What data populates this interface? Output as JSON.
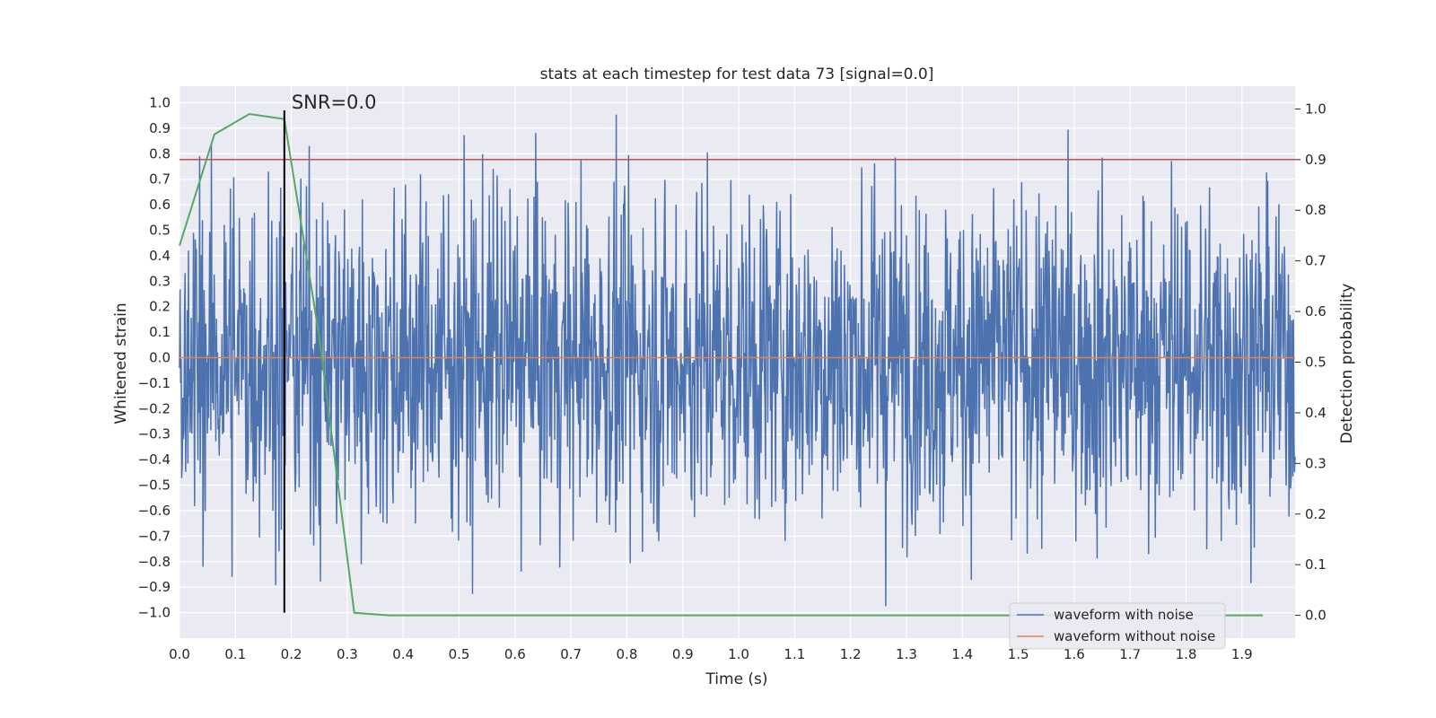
{
  "chart_data": {
    "type": "line",
    "title": "stats at each timestep for test data 73 [signal=0.0]",
    "xlabel": "Time (s)",
    "ylabel": "Whitened strain",
    "ylabel_right": "Detection probability",
    "xlim": [
      0.0,
      1.995
    ],
    "ylim": [
      -1.1,
      1.065
    ],
    "ylim_right": [
      -0.045,
      1.045
    ],
    "x_ticks": [
      "0.0",
      "0.1",
      "0.2",
      "0.3",
      "0.4",
      "0.5",
      "0.6",
      "0.7",
      "0.8",
      "0.9",
      "1.0",
      "1.1",
      "1.2",
      "1.3",
      "1.4",
      "1.5",
      "1.6",
      "1.7",
      "1.8",
      "1.9"
    ],
    "y_ticks": [
      "1.0",
      "0.9",
      "0.8",
      "0.7",
      "0.6",
      "0.5",
      "0.4",
      "0.3",
      "0.2",
      "0.1",
      "0.0",
      "−0.1",
      "−0.2",
      "−0.3",
      "−0.4",
      "−0.5",
      "−0.6",
      "−0.7",
      "−0.8",
      "−0.9",
      "−1.0"
    ],
    "y_ticks_right": [
      "1.0",
      "0.9",
      "0.8",
      "0.7",
      "0.6",
      "0.5",
      "0.4",
      "0.3",
      "0.2",
      "0.1",
      "0.0"
    ],
    "series": [
      {
        "name": "waveform with noise",
        "color": "#4c72b0",
        "kind": "noise",
        "samples": 1996,
        "t_start": 0.0,
        "t_end": 1.995,
        "approx_range": [
          -1.0,
          0.97
        ],
        "approx_std": 0.33
      },
      {
        "name": "waveform without noise",
        "color": "#dd8452",
        "kind": "constant",
        "value": 0.0
      },
      {
        "name": "detection probability",
        "color": "#55a868",
        "axis": "right",
        "x": [
          0.0,
          0.0625,
          0.125,
          0.1875,
          0.25,
          0.3125,
          0.375,
          0.4375,
          0.5,
          0.5625,
          0.625,
          0.6875,
          0.75,
          0.8125,
          0.875,
          0.9375,
          1.0,
          1.0625,
          1.125,
          1.1875,
          1.25,
          1.3125,
          1.375,
          1.4375,
          1.5,
          1.5625,
          1.625,
          1.6875,
          1.75,
          1.8125,
          1.875,
          1.9375
        ],
        "values": [
          0.73,
          0.95,
          0.99,
          0.98,
          0.55,
          0.005,
          0.0,
          0.0,
          0.0,
          0.0,
          0.0,
          0.0,
          0.0,
          0.0,
          0.0,
          0.0,
          0.0,
          0.0,
          0.0,
          0.0,
          0.0,
          0.0,
          0.0,
          0.0,
          0.0,
          0.0,
          0.0,
          0.0,
          0.0,
          0.0,
          0.0,
          0.0
        ]
      }
    ],
    "threshold": {
      "axis": "right",
      "value": 0.9,
      "color": "#c44e52"
    },
    "marker": {
      "x": 0.1875,
      "label": "SNR=0.0",
      "color": "#000000",
      "y_from": -1.0,
      "y_to": 0.97
    },
    "legend": {
      "location": "lower-right",
      "entries": [
        "waveform with noise",
        "waveform without noise"
      ]
    },
    "grid": true,
    "background": "#eaeaf2"
  }
}
